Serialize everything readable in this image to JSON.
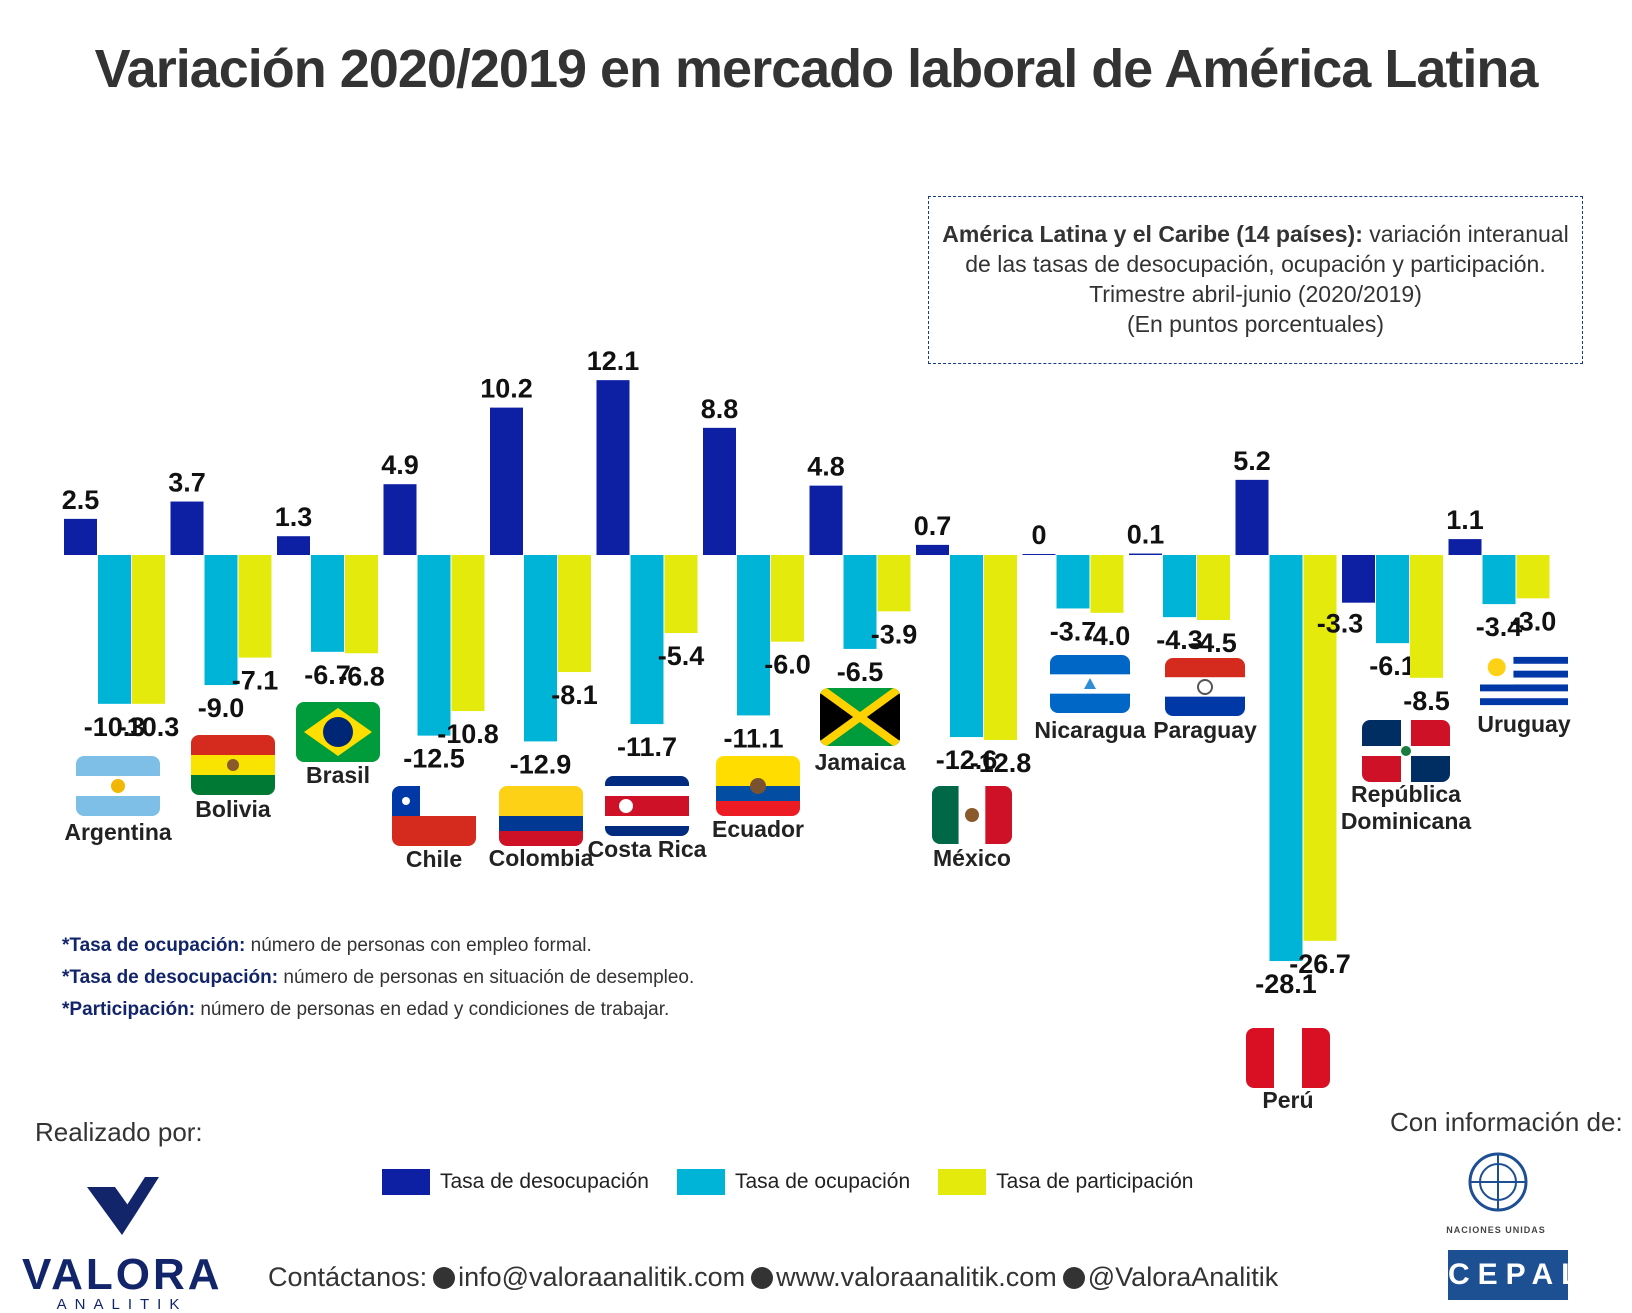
{
  "title": "Variación 2020/2019 en mercado laboral de América Latina",
  "info_box": {
    "lead": "América Latina y el Caribe (14 países):",
    "line1_rest": "variación interanual",
    "line2": "de las tasas de desocupación, ocupación y participación.",
    "line3": "Trimestre abril-junio (2020/2019)",
    "line4": "(En puntos porcentuales)"
  },
  "chart_data": {
    "type": "bar",
    "categories": [
      "Argentina",
      "Bolivia",
      "Brasil",
      "Chile",
      "Colombia",
      "Costa Rica",
      "Ecuador",
      "Jamaica",
      "México",
      "Nicaragua",
      "Paraguay",
      "Perú",
      "República Dominicana",
      "Uruguay"
    ],
    "series": [
      {
        "name": "Tasa de desocupación",
        "values": [
          2.5,
          3.7,
          1.3,
          4.9,
          10.2,
          12.1,
          8.8,
          4.8,
          0.7,
          0,
          0.1,
          5.2,
          -3.3,
          1.1
        ]
      },
      {
        "name": "Tasa de ocupación",
        "values": [
          -10.3,
          -9.0,
          -6.7,
          -12.5,
          -12.9,
          -11.7,
          -11.1,
          -6.5,
          -12.6,
          -3.7,
          -4.3,
          -28.1,
          -6.1,
          -3.4
        ]
      },
      {
        "name": "Tasa de participación",
        "values": [
          -10.3,
          -7.1,
          -6.8,
          -10.8,
          -8.1,
          -5.4,
          -6.0,
          -3.9,
          -12.8,
          -4.0,
          -4.5,
          -26.7,
          -8.5,
          -3.0
        ]
      }
    ],
    "value_labels": [
      [
        "2.5",
        "3.7",
        "1.3",
        "4.9",
        "10.2",
        "12.1",
        "8.8",
        "4.8",
        "0.7",
        "0",
        "0.1",
        "5.2",
        "-3.3",
        "1.1"
      ],
      [
        "-10.3",
        "-9.0",
        "-6.7",
        "-12.5",
        "-12.9",
        "-11.7",
        "-11.1",
        "-6.5",
        "-12.6",
        "-3.7",
        "-4.3",
        "-28.1",
        "-6.1",
        "-3.4"
      ],
      [
        "-10.3",
        "-7.1",
        "-6.8",
        "-10.8",
        "-8.1",
        "-5.4",
        "-6.0",
        "-3.9",
        "-12.8",
        "-4.0",
        "-4.5",
        "-26.7",
        "-8.5",
        "-3.0"
      ]
    ],
    "country_labels": [
      [
        "Argentina"
      ],
      [
        "Bolivia"
      ],
      [
        "Brasil"
      ],
      [
        "Chile"
      ],
      [
        "Colombia"
      ],
      [
        "Costa Rica"
      ],
      [
        "Ecuador"
      ],
      [
        "Jamaica"
      ],
      [
        "México"
      ],
      [
        "Nicaragua"
      ],
      [
        "Paraguay"
      ],
      [
        "Perú"
      ],
      [
        "República",
        "Dominicana"
      ],
      [
        "Uruguay"
      ]
    ],
    "flags": [
      "argentina-flag",
      "bolivia-flag",
      "brasil-flag",
      "chile-flag",
      "colombia-flag",
      "costa-rica-flag",
      "ecuador-flag",
      "jamaica-flag",
      "mexico-flag",
      "nicaragua-flag",
      "paraguay-flag",
      "peru-flag",
      "republica-dominicana-flag",
      "uruguay-flag"
    ],
    "colors": [
      "#0d1fa3",
      "#00b4d8",
      "#e3ea0c"
    ],
    "ylim": [
      -28.1,
      12.1
    ],
    "grid": false,
    "legend_position": "bottom-center"
  },
  "notes": [
    {
      "term": "*Tasa de ocupación:",
      "text": "número de personas con empleo formal."
    },
    {
      "term": "*Tasa de desocupación:",
      "text": "número de personas en situación de desempleo."
    },
    {
      "term": "*Participación:",
      "text": "número de personas en edad y condiciones de trabajar."
    }
  ],
  "legend": [
    {
      "label": "Tasa de desocupación",
      "color": "#0d1fa3"
    },
    {
      "label": "Tasa de ocupación",
      "color": "#00b4d8"
    },
    {
      "label": "Tasa de participación",
      "color": "#e3ea0c"
    }
  ],
  "footer": {
    "made_by": "Realizado por:",
    "brand_name": "VALORA",
    "brand_sub": "ANALITIK",
    "contact_label": "Contáctanos:",
    "email": "info@valoraanalitik.com",
    "website": "www.valoraanalitik.com",
    "twitter": "@ValoraAnalitik",
    "source_label": "Con información de:",
    "un_name": "NACIONES UNIDAS",
    "cepal": "CEPAL"
  }
}
